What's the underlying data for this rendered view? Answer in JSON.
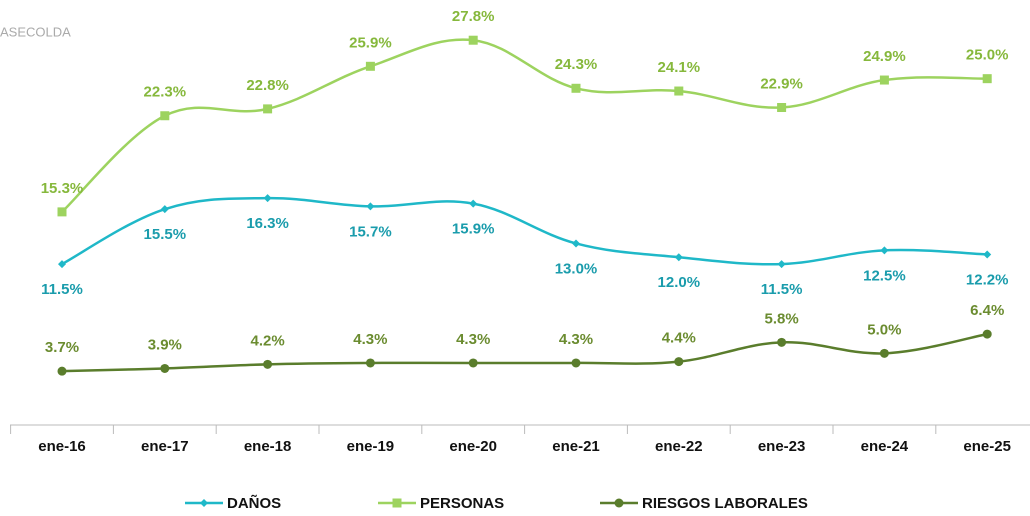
{
  "chart_data": {
    "type": "line",
    "subtitle": "ASECOLDA",
    "categories": [
      "ene-16",
      "ene-17",
      "ene-18",
      "ene-19",
      "ene-20",
      "ene-21",
      "ene-22",
      "ene-23",
      "ene-24",
      "ene-25"
    ],
    "ylim": [
      0,
      30
    ],
    "series": [
      {
        "name": "DAÑOS",
        "color": "#1fb8c8",
        "label_color": "#1a9cac",
        "marker": "diamond",
        "label_position": "below",
        "values": [
          11.5,
          15.5,
          16.3,
          15.7,
          15.9,
          13.0,
          12.0,
          11.5,
          12.5,
          12.2
        ],
        "value_labels": [
          "11.5%",
          "15.5%",
          "16.3%",
          "15.7%",
          "15.9%",
          "13.0%",
          "12.0%",
          "11.5%",
          "12.5%",
          "12.2%"
        ]
      },
      {
        "name": "PERSONAS",
        "color": "#9dd35f",
        "label_color": "#86b83c",
        "marker": "square",
        "label_position": "above",
        "values": [
          15.3,
          22.3,
          22.8,
          25.9,
          27.8,
          24.3,
          24.1,
          22.9,
          24.9,
          25.0
        ],
        "value_labels": [
          "15.3%",
          "22.3%",
          "22.8%",
          "25.9%",
          "27.8%",
          "24.3%",
          "24.1%",
          "22.9%",
          "24.9%",
          "25.0%"
        ]
      },
      {
        "name": "RIESGOS LABORALES",
        "color": "#5a7d2c",
        "label_color": "#6b8c30",
        "marker": "circle",
        "label_position": "above",
        "values": [
          3.7,
          3.9,
          4.2,
          4.3,
          4.3,
          4.3,
          4.4,
          5.8,
          5.0,
          6.4
        ],
        "value_labels": [
          "3.7%",
          "3.9%",
          "4.2%",
          "4.3%",
          "4.3%",
          "4.3%",
          "4.4%",
          "5.8%",
          "5.0%",
          "6.4%"
        ]
      }
    ]
  }
}
